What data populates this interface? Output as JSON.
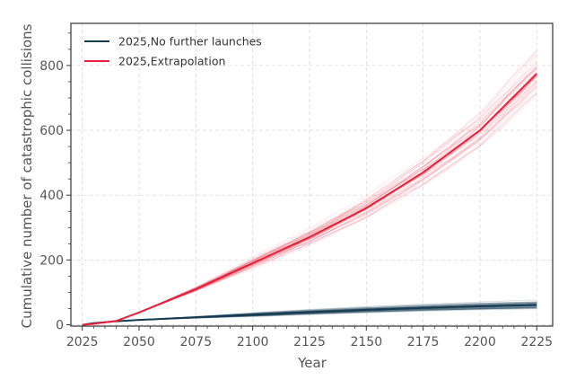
{
  "chart_data": {
    "type": "line",
    "title": "",
    "xlabel": "Year",
    "ylabel": "Cumulative number of catastrophic collisions",
    "xlim": [
      2020,
      2232
    ],
    "ylim": [
      -4,
      930
    ],
    "xticks": [
      2025,
      2050,
      2075,
      2100,
      2125,
      2150,
      2175,
      2200,
      2225
    ],
    "yticks": [
      0,
      200,
      400,
      600,
      800
    ],
    "grid": true,
    "legend_position": "top-left",
    "series": [
      {
        "name": "2025,No further launches",
        "color": "#173b52",
        "x": [
          2025,
          2030,
          2040,
          2050,
          2075,
          2100,
          2125,
          2150,
          2175,
          2200,
          2225
        ],
        "y": [
          0,
          5,
          11,
          15,
          23,
          31,
          39,
          46,
          52,
          57,
          61
        ],
        "ensemble_spread": 0.15
      },
      {
        "name": "2025,Extrapolation",
        "color": "#e8203a",
        "x": [
          2025,
          2030,
          2040,
          2050,
          2075,
          2100,
          2125,
          2150,
          2175,
          2200,
          2225
        ],
        "y": [
          0,
          3,
          12,
          38,
          110,
          190,
          270,
          360,
          470,
          600,
          775
        ],
        "ensemble_spread": 0.07
      }
    ]
  }
}
